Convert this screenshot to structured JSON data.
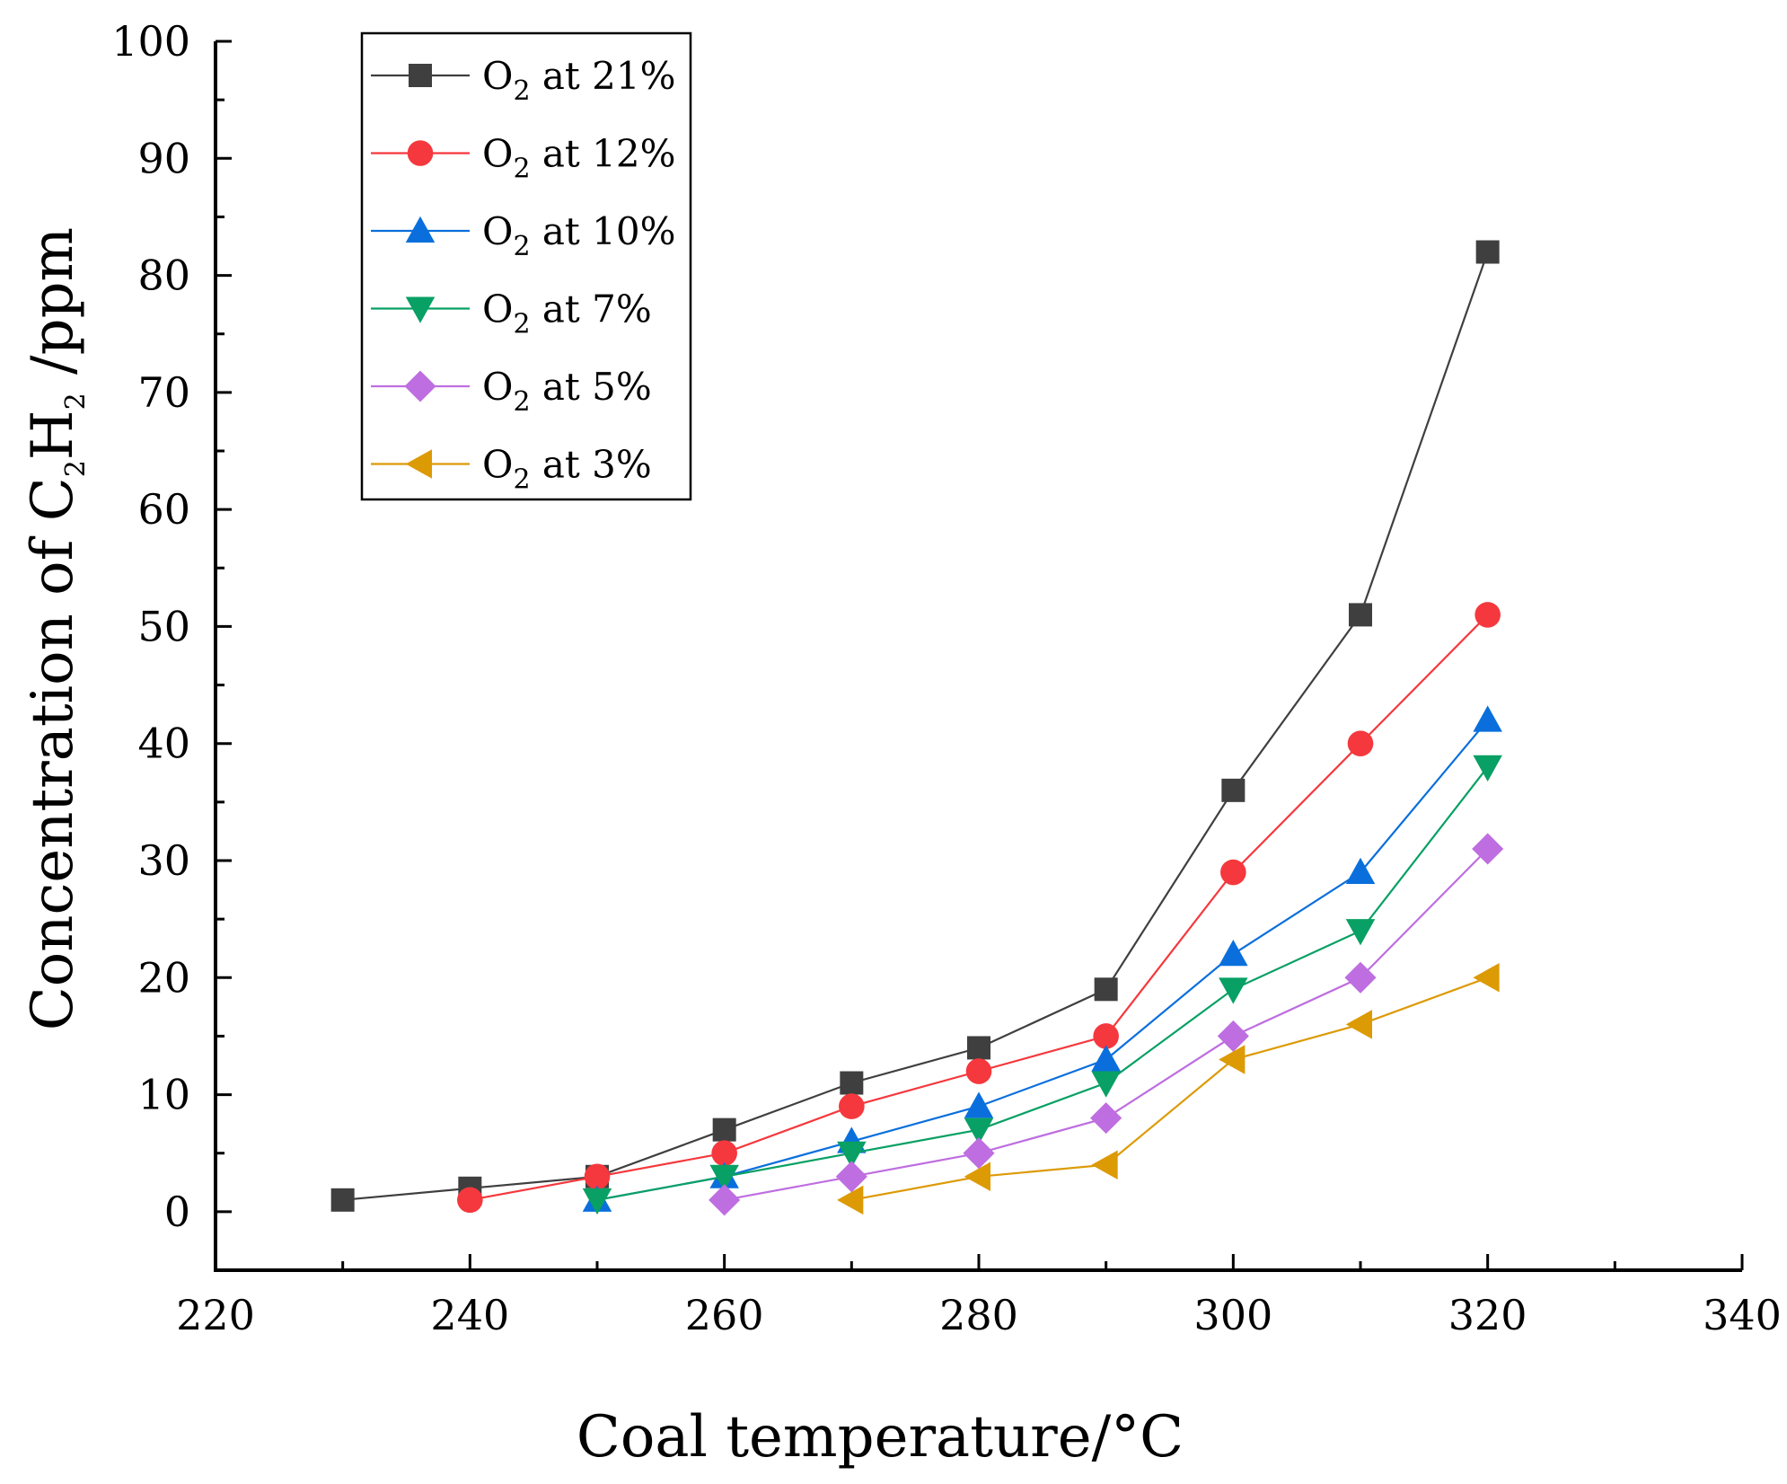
{
  "chart_data": {
    "type": "line",
    "xlabel": "Coal temperature/°C",
    "ylabel": {
      "prefix": "Concentration of C",
      "sub1": "2",
      "mid": "H",
      "sub2": "2",
      "suffix": " /ppm"
    },
    "xlim": [
      220,
      340
    ],
    "ylim": [
      -5,
      100
    ],
    "xticks": [
      220,
      240,
      260,
      280,
      300,
      320,
      340
    ],
    "yticks": [
      0,
      10,
      20,
      30,
      40,
      50,
      60,
      70,
      80,
      90,
      100
    ],
    "legend_position": "top-left",
    "series": [
      {
        "name": "O2 at 21%",
        "label_main": "O",
        "label_sub": "2",
        "label_rest": " at 21%",
        "color": "#3f3f3f",
        "marker": "square",
        "x": [
          230,
          240,
          250,
          260,
          270,
          280,
          290,
          300,
          310,
          320
        ],
        "y": [
          1,
          2,
          3,
          7,
          11,
          14,
          19,
          36,
          51,
          82
        ]
      },
      {
        "name": "O2 at 12%",
        "label_main": "O",
        "label_sub": "2",
        "label_rest": " at 12%",
        "color": "#f5383d",
        "marker": "circle",
        "x": [
          240,
          250,
          260,
          270,
          280,
          290,
          300,
          310,
          320
        ],
        "y": [
          1,
          3,
          5,
          9,
          12,
          15,
          29,
          40,
          51
        ]
      },
      {
        "name": "O2 at 10%",
        "label_main": "O",
        "label_sub": "2",
        "label_rest": " at 10%",
        "color": "#0a6fdc",
        "marker": "triangle-up",
        "x": [
          250,
          260,
          270,
          280,
          290,
          300,
          310,
          320
        ],
        "y": [
          1,
          3,
          6,
          9,
          13,
          22,
          29,
          42
        ]
      },
      {
        "name": "O2 at 7%",
        "label_main": "O",
        "label_sub": "2",
        "label_rest": " at 7%",
        "color": "#08a064",
        "marker": "triangle-down",
        "x": [
          250,
          260,
          270,
          280,
          290,
          300,
          310,
          320
        ],
        "y": [
          1,
          3,
          5,
          7,
          11,
          19,
          24,
          38
        ]
      },
      {
        "name": "O2 at 5%",
        "label_main": "O",
        "label_sub": "2",
        "label_rest": " at 5%",
        "color": "#be6ee0",
        "marker": "diamond",
        "x": [
          260,
          270,
          280,
          290,
          300,
          310,
          320
        ],
        "y": [
          1,
          3,
          5,
          8,
          15,
          20,
          31
        ]
      },
      {
        "name": "O2 at 3%",
        "label_main": "O",
        "label_sub": "2",
        "label_rest": " at 3%",
        "color": "#dc9a05",
        "marker": "triangle-left",
        "x": [
          270,
          280,
          290,
          300,
          310,
          320
        ],
        "y": [
          1,
          3,
          4,
          13,
          16,
          20
        ]
      }
    ]
  }
}
